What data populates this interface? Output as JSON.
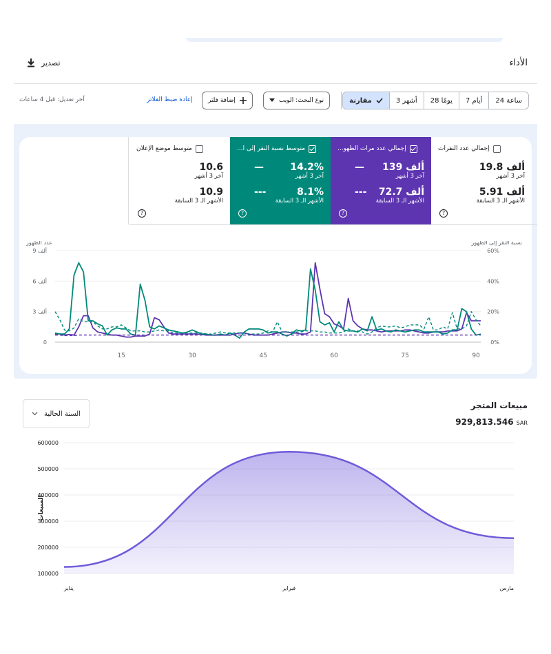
{
  "performance": {
    "title": "الأداء",
    "export_label": "تصدير",
    "date_ranges": [
      "24 ساعة",
      "7 أيام",
      "28 يومًا",
      "3 أشهر"
    ],
    "compare_label": "مقارنة",
    "search_type_label": "نوع البحث: الويب",
    "add_filter_label": "إضافة فلتر",
    "reset_filters_label": "إعادة ضبط الفلاتر",
    "last_edit": "آخر تعديل: قبل 4 ساعات"
  },
  "metrics": [
    {
      "name": "إجمالي عدد النقرات",
      "current": "19.8 ألف",
      "current_period": "آخر 3 أشهر",
      "previous": "5.91 ألف",
      "previous_period": "الأشهر الـ 3 السابقة",
      "selected": false,
      "color": "#ffffff"
    },
    {
      "name": "إجمالي عدد مرات الظهو...",
      "current": "139 ألف",
      "current_period": "آخر 3 أشهر",
      "previous": "72.7 ألف",
      "previous_period": "الأشهر الـ 3 السابقة",
      "selected": true,
      "color": "#5e35b1"
    },
    {
      "name": "متوسط نسبة النقر إلى ا...",
      "current": "14.2%",
      "current_period": "آخر 3 أشهر",
      "previous": "8.1%",
      "previous_period": "الأشهر الـ 3 السابقة",
      "selected": true,
      "color": "#00897b"
    },
    {
      "name": "متوسط موضع الإعلان",
      "current": "10.6",
      "current_period": "آخر 3 أشهر",
      "previous": "10.9",
      "previous_period": "الأشهر الـ 3 السابقة",
      "selected": false,
      "color": "#ffffff"
    }
  ],
  "chart_data": [
    {
      "type": "line",
      "left_axis_label": "عدد الظهور",
      "right_axis_label": "نسبة النقر إلى الظهور",
      "left_ticks": [
        "9 ألف",
        "6 ألف",
        "3 ألف",
        "0"
      ],
      "right_ticks": [
        "60%",
        "40%",
        "20%",
        "0%"
      ],
      "x_ticks": [
        15,
        30,
        45,
        60,
        75,
        90
      ],
      "ylim_left": [
        0,
        9000
      ],
      "ylim_right": [
        0,
        60
      ],
      "xlim": [
        1,
        91
      ],
      "series": [
        {
          "name": "",
          "color": "#5e35b1",
          "style": "solid",
          "axis": "left",
          "values": [
            800,
            800,
            700,
            750,
            700,
            1500,
            2600,
            2600,
            1400,
            1000,
            900,
            800,
            700,
            700,
            600,
            500,
            500,
            600,
            600,
            600,
            800,
            2400,
            2200,
            1500,
            900,
            800,
            800,
            800,
            800,
            800,
            800,
            750,
            700,
            700,
            700,
            700,
            700,
            700,
            800,
            900,
            900,
            800,
            700,
            700,
            700,
            700,
            800,
            900,
            1000,
            1000,
            900,
            900,
            800,
            800,
            1000,
            7800,
            5200,
            2800,
            2500,
            1800,
            1600,
            1300,
            4300,
            2100,
            1600,
            1300,
            1200,
            1200,
            1100,
            1000,
            1100,
            1100,
            1100,
            1100,
            1200,
            1200,
            1100,
            1000,
            900,
            900,
            1000,
            1000,
            1000,
            1100,
            1100,
            1100,
            1300,
            2900,
            2100,
            2100,
            2100
          ]
        },
        {
          "name": "",
          "color": "#00897b",
          "style": "solid",
          "axis": "left",
          "values": [
            900,
            800,
            800,
            1300,
            6600,
            7800,
            6900,
            2100,
            2100,
            1800,
            1600,
            700,
            1200,
            1400,
            1300,
            1300,
            800,
            700,
            5700,
            4100,
            1500,
            1300,
            1600,
            1400,
            1200,
            1100,
            1000,
            900,
            1000,
            1200,
            1000,
            800,
            800,
            700,
            700,
            800,
            700,
            900,
            700,
            400,
            1000,
            1300,
            1300,
            1300,
            1200,
            900,
            1000,
            1000,
            800,
            600,
            800,
            1200,
            1100,
            1200,
            7200,
            5100,
            2000,
            1700,
            1900,
            1000,
            2000,
            1200,
            1100,
            1100,
            1000,
            1300,
            1100,
            2500,
            1200,
            1300,
            1100,
            1000,
            1200,
            1100,
            1000,
            1100,
            1200,
            1200,
            1000,
            1000,
            1000,
            1000,
            800,
            900,
            1200,
            1200,
            3300,
            3000,
            1300,
            700,
            800
          ]
        },
        {
          "name": "",
          "color": "#5e35b1",
          "style": "dashed",
          "axis": "left",
          "values": [
            700,
            700,
            650,
            650,
            650,
            700,
            700,
            700,
            700,
            700,
            700,
            700,
            700,
            700,
            700,
            700,
            700,
            700,
            700,
            700,
            700,
            700,
            700,
            700,
            700,
            700,
            700,
            700,
            700,
            700,
            700,
            700,
            700,
            700,
            700,
            700,
            700,
            700,
            700,
            700,
            700,
            700,
            700,
            700,
            700,
            700,
            700,
            700,
            700,
            700,
            700,
            700,
            700,
            700,
            700,
            700,
            700,
            700,
            700,
            700,
            700,
            700,
            700,
            700,
            700,
            700,
            700,
            700,
            700,
            700,
            700,
            700,
            700,
            700,
            700,
            700,
            700,
            700,
            700,
            700,
            700,
            700,
            700,
            700,
            700,
            700,
            700,
            700,
            700,
            700,
            700
          ]
        },
        {
          "name": "",
          "color": "#00897b",
          "style": "dashed",
          "axis": "left",
          "values": [
            3000,
            2200,
            1200,
            1100,
            1400,
            2300,
            2000,
            2000,
            2000,
            1600,
            1300,
            1300,
            1500,
            1500,
            1700,
            1400,
            1100,
            1100,
            1100,
            1000,
            1000,
            1100,
            1200,
            1100,
            1100,
            900,
            900,
            900,
            900,
            900,
            900,
            900,
            800,
            800,
            900,
            1000,
            900,
            900,
            900,
            900,
            900,
            800,
            800,
            800,
            900,
            1100,
            1000,
            2000,
            1000,
            1000,
            1000,
            1000,
            1000,
            1100,
            1100,
            1100,
            1000,
            1000,
            900,
            900,
            900,
            1000,
            1300,
            1100,
            1100,
            1000,
            800,
            1000,
            1400,
            1600,
            1500,
            1500,
            1600,
            1400,
            1500,
            1700,
            1700,
            1700,
            1300,
            2500,
            1200,
            1200,
            1500,
            1300,
            2900,
            1300,
            1300,
            1600,
            3000,
            2200,
            1600
          ]
        }
      ]
    },
    {
      "type": "area",
      "title": "مبيعات المتجر",
      "total": "929,813.546",
      "currency": "SAR",
      "period_select": "السنة الحالية",
      "ylabel": "المبيعات",
      "ylim": [
        100000,
        600000
      ],
      "y_ticks": [
        600000,
        500000,
        400000,
        300000,
        200000,
        100000
      ],
      "categories": [
        "يناير",
        "فبراير",
        "مارس"
      ],
      "values": [
        125000,
        565000,
        235000
      ],
      "color": "#6f5bd9"
    }
  ]
}
